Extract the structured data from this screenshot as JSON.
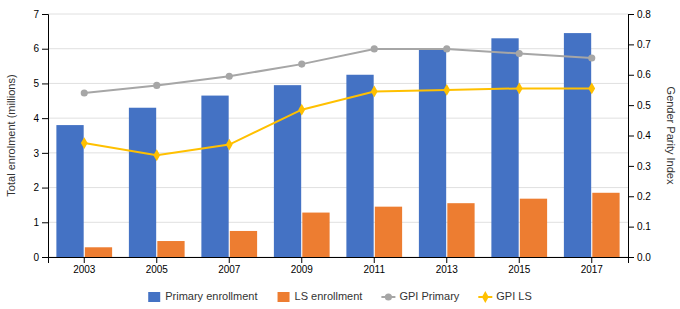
{
  "chart_data": {
    "type": "bar",
    "categories": [
      2003,
      2005,
      2007,
      2009,
      2011,
      2013,
      2015,
      2017
    ],
    "series": [
      {
        "name": "Primary enrollment",
        "type": "bar",
        "color": "#4472C4",
        "values": [
          3.8,
          4.3,
          4.65,
          4.95,
          5.25,
          6.0,
          6.3,
          6.45
        ]
      },
      {
        "name": "LS enrollment",
        "type": "bar",
        "color": "#ED7D31",
        "values": [
          0.28,
          0.46,
          0.75,
          1.28,
          1.45,
          1.55,
          1.68,
          1.85
        ]
      },
      {
        "name": "GPI Primary",
        "type": "line",
        "axis": "y2",
        "color": "#A6A6A6",
        "marker": "circle",
        "values": [
          0.54,
          0.565,
          0.595,
          0.635,
          0.685,
          0.685,
          0.67,
          0.655
        ]
      },
      {
        "name": "GPI LS",
        "type": "line",
        "axis": "y2",
        "color": "#FFC000",
        "marker": "diamond",
        "values": [
          0.375,
          0.335,
          0.37,
          0.485,
          0.545,
          0.55,
          0.555,
          0.555
        ]
      }
    ],
    "ylabel": "Total enrolment (millions)",
    "y2label": "Gender Parity Index",
    "ylim": [
      0,
      7
    ],
    "yticks": [
      0,
      1,
      2,
      3,
      4,
      5,
      6,
      7
    ],
    "y2lim": [
      0.0,
      0.8
    ],
    "y2ticks": [
      {
        "value": 0,
        "label": "0.0"
      },
      0.1,
      0.2,
      0.3,
      0.4,
      0.5,
      0.6,
      0.7,
      0.8
    ],
    "grid": true,
    "legend": "bottom"
  }
}
